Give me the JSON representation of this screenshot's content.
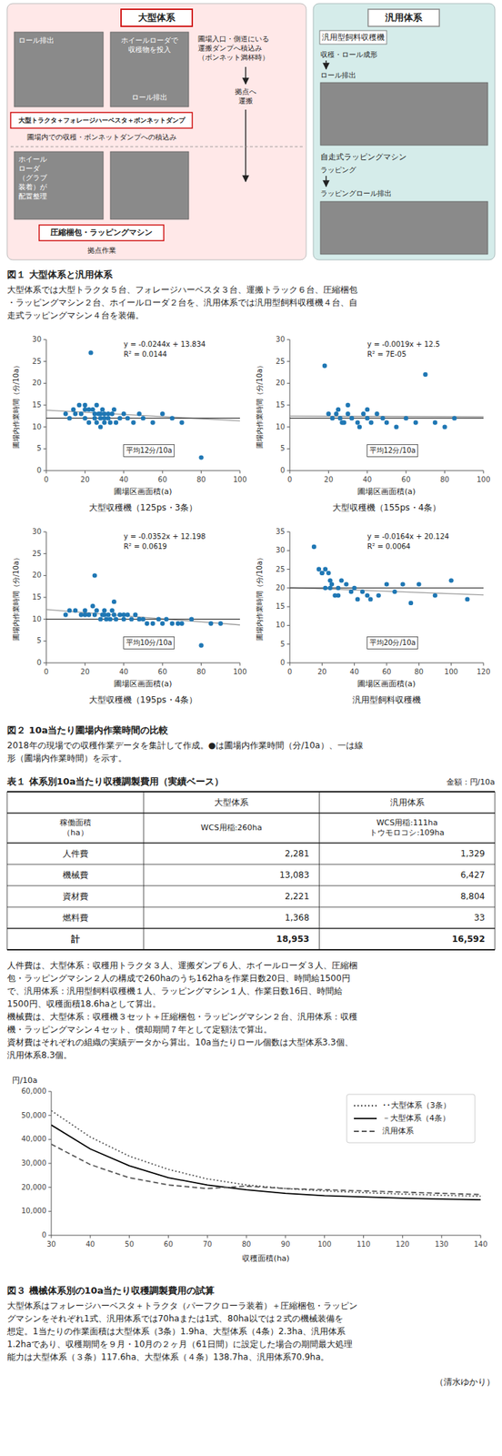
{
  "chart_data": [
    {
      "type": "diagram",
      "title": "図１ 大型体系と汎用体系",
      "subtitle": [
        "大型体系では大型トラクタ５台、フォレージハーベスタ３台、運搬トラック６台、圧縮梱包",
        "・ラッピングマシン２台、ホイールローダ２台を、汎用体系では汎用型飼料収穫機４台、自",
        "走式ラッピングマシン４台を装備。"
      ],
      "categories": [
        "大型体系",
        "汎用体系"
      ],
      "colors": [
        "#FFE8E8",
        "#D5ECEA"
      ],
      "annotations": [
        "大型トラクタ＋フォレージハーベスタ＋ボンネットダンプ",
        "圃場内での収穫・ボンネットダンプへの積込み",
        "圧縮梱包・ラッピングマシン",
        "拠点作業",
        "圃場入口・側道にいる\n運搬ダンプへ積込み\n（ボンネット満杯時）",
        "拠点へ\n運搬",
        "ロール排出",
        "ロール排出",
        "ホイール\nローダ\n（グラブ\n装着）が\n配置整理",
        "ホイールローダで\n収穫物を投入",
        "汎用型飼料収穫機",
        "収穫・ロール成形",
        "ロール排出",
        "自走式ラッピングマシン",
        "ラッピング",
        "ラッピングロール排出"
      ]
    },
    {
      "type": "scatter",
      "title": "大型収穫機（125ps・3条）",
      "x_label": "圃場区画面積(a)",
      "y_label": "圃場内作業時間（分/10a）",
      "annotations": [
        "y = -0.0244x + 13.834",
        "R² = 0.0144",
        "平均12分/10a"
      ],
      "slope": -0.0244,
      "intercept": 13.834,
      "average": 12,
      "xlim": [
        0,
        100
      ],
      "ylim": [
        0,
        30
      ],
      "xticks": [
        0,
        20,
        40,
        60,
        80,
        100
      ],
      "yticks": [
        0,
        5,
        10,
        15,
        20,
        25,
        30
      ],
      "grid": false,
      "x": [
        10,
        12,
        14,
        15,
        17,
        18,
        20,
        20,
        20,
        22,
        22,
        23,
        24,
        25,
        25,
        26,
        26,
        27,
        28,
        28,
        28,
        29,
        30,
        30,
        30,
        32,
        32,
        33,
        34,
        35,
        36,
        38,
        40,
        42,
        45,
        48,
        50,
        55,
        60,
        65,
        70,
        80
      ],
      "values": [
        13,
        12,
        14,
        13,
        15,
        13,
        15,
        12,
        14,
        14,
        11,
        27,
        14,
        13,
        12,
        11,
        15,
        13,
        12,
        10,
        13,
        14,
        13,
        11,
        12,
        13,
        12,
        11,
        13,
        14,
        11,
        12,
        13,
        12,
        11,
        13,
        12,
        11,
        13,
        12,
        11,
        3
      ]
    },
    {
      "type": "scatter",
      "title": "大型収穫機（155ps・4条）",
      "x_label": "圃場区画面積(a)",
      "y_label": "圃場内作業時間（分/10a）",
      "annotations": [
        "y = -0.0019x + 12.5",
        "R² = 7E-05",
        "平均12分/10a"
      ],
      "slope": -0.0019,
      "intercept": 12.5,
      "average": 12,
      "xlim": [
        0,
        100
      ],
      "ylim": [
        0,
        30
      ],
      "xticks": [
        0,
        20,
        40,
        60,
        80,
        100
      ],
      "yticks": [
        0,
        5,
        10,
        15,
        20,
        25,
        30
      ],
      "grid": false,
      "x": [
        18,
        20,
        22,
        24,
        25,
        26,
        27,
        28,
        30,
        30,
        32,
        35,
        36,
        38,
        40,
        40,
        42,
        45,
        48,
        50,
        55,
        60,
        65,
        70,
        75,
        80,
        85
      ],
      "values": [
        24,
        13,
        12,
        13,
        14,
        12,
        11,
        11,
        13,
        15,
        12,
        11,
        10,
        13,
        12,
        14,
        11,
        13,
        12,
        11,
        10,
        12,
        11,
        22,
        11,
        10,
        12
      ]
    },
    {
      "type": "scatter",
      "title": "大型収穫機（195ps・4条）",
      "x_label": "圃場区画面積(a)",
      "y_label": "圃場内作業時間（分/10a）",
      "annotations": [
        "y = -0.0352x + 12.198",
        "R² = 0.0619",
        "平均10分/10a"
      ],
      "slope": -0.0352,
      "intercept": 12.198,
      "average": 10,
      "xlim": [
        0,
        100
      ],
      "ylim": [
        0,
        30
      ],
      "xticks": [
        0,
        20,
        40,
        60,
        80,
        100
      ],
      "yticks": [
        0,
        5,
        10,
        15,
        20,
        25,
        30
      ],
      "grid": false,
      "x": [
        10,
        12,
        15,
        18,
        20,
        20,
        22,
        24,
        25,
        25,
        26,
        28,
        29,
        30,
        30,
        31,
        32,
        33,
        34,
        35,
        35,
        36,
        38,
        40,
        40,
        42,
        44,
        46,
        48,
        50,
        52,
        55,
        58,
        60,
        62,
        65,
        68,
        70,
        75,
        80,
        85,
        90
      ],
      "values": [
        11,
        12,
        12,
        11,
        12,
        11,
        11,
        13,
        11,
        20,
        12,
        10,
        11,
        12,
        11,
        10,
        11,
        10,
        12,
        11,
        14,
        10,
        11,
        10,
        11,
        11,
        10,
        11,
        10,
        10,
        9,
        9,
        10,
        9,
        10,
        9,
        9,
        9,
        10,
        4,
        9,
        9
      ]
    },
    {
      "type": "scatter",
      "title": "汎用型飼料収穫機",
      "x_label": "圃場区画面積(a)",
      "y_label": "圃場内作業時間（分/10a）",
      "annotations": [
        "y = -0.0164x + 20.124",
        "R² = 0.0064",
        "平均20分/10a"
      ],
      "slope": -0.0164,
      "intercept": 20.124,
      "average": 20,
      "xlim": [
        0,
        120
      ],
      "ylim": [
        0,
        35
      ],
      "xticks": [
        0,
        20,
        40,
        60,
        80,
        100,
        120
      ],
      "yticks": [
        0,
        5,
        10,
        15,
        20,
        25,
        30,
        35
      ],
      "grid": false,
      "x": [
        15,
        18,
        20,
        20,
        22,
        22,
        24,
        25,
        25,
        26,
        28,
        30,
        30,
        32,
        35,
        38,
        40,
        42,
        45,
        48,
        50,
        55,
        60,
        65,
        70,
        75,
        80,
        90,
        100,
        110
      ],
      "values": [
        31,
        25,
        24,
        24,
        25,
        20,
        24,
        20,
        22,
        21,
        18,
        20,
        18,
        22,
        21,
        19,
        20,
        17,
        19,
        18,
        17,
        18,
        21,
        19,
        21,
        16,
        21,
        18,
        22,
        17
      ]
    },
    {
      "type": "caption",
      "title": "図２ 10a当たり圃場内作業時間の比較",
      "subtitle": [
        "2018年の現場での収穫作業データを集計して作成。●は圃場内作業時間（分/10a）、一は線",
        "形（圃場内作業時間）を示す。"
      ]
    },
    {
      "type": "table",
      "title": "表１ 体系別10a当たり収穫調製費用（実績ベース）",
      "annotations": [
        "金額：円/10a",
        "稼働面積\n（ha）",
        "WCS用稲:260ha",
        "WCS用稲:111ha\nトウモロコシ:109ha"
      ],
      "categories": [
        "人件費",
        "機械費",
        "資材費",
        "燃料費",
        "計"
      ],
      "series": [
        {
          "name": "大型体系",
          "values": [
            2281,
            13083,
            2221,
            1368,
            18953
          ],
          "value_labels": [
            "2,281",
            "13,083",
            "2,221",
            "1,368",
            "18,953"
          ]
        },
        {
          "name": "汎用体系",
          "values": [
            1329,
            6427,
            8804,
            33,
            16592
          ],
          "value_labels": [
            "1,329",
            "6,427",
            "8,804",
            "33",
            "16,592"
          ]
        }
      ],
      "subtitle": [
        "人件費は、大型体系：収穫用トラクタ３人、運搬ダンプ６人、ホイールローダ３人、圧縮梱",
        "包・ラッピングマシン２人の構成で260haのうち162haを作業日数20日、時間給1500円",
        "で、汎用体系：汎用型飼料収穫機１人、ラッピングマシン１人、作業日数16日、時間給",
        "1500円、収穫面積18.6haとして算出。",
        "機械費は、大型体系：収穫機３セット＋圧縮梱包・ラッピングマシン２台、汎用体系：収穫",
        "機・ラッピングマシン４セット、償却期間７年として定額法で算出。",
        "資材費はそれぞれの組織の実績データから算出。10a当たりロール個数は大型体系3.3個、",
        "汎用体系8.3個。"
      ]
    },
    {
      "type": "line",
      "title": "図３ 機械体系別の10a当たり収穫調製費用の試算",
      "subtitle": [
        "大型体系はフォレージハーベスタ＋トラクタ（パーフクローラ装着）＋圧縮梱包・ラッピン",
        "グマシンをそれぞれ1式、汎用体系では70haまたは1式、80ha以では２式の機械装備を",
        "想定。1当たりの作業面積は大型体系（3条）1.9ha、大型体系（4条）2.3ha、汎用体系",
        "1.2haであり、収穫期間を９月・10月の２ヶ月（61日間）に設定した場合の期間最大処理",
        "能力は大型体系（３条）117.6ha、大型体系（４条）138.7ha、汎用体系70.9ha。"
      ],
      "annotations": [
        "（清水ゆかり）"
      ],
      "x_label": "収穫面積(ha)",
      "y_label": "円/10a",
      "x": [
        30,
        40,
        50,
        60,
        70,
        80,
        90,
        100,
        110,
        120,
        130,
        140
      ],
      "series": [
        {
          "name": "･･大型体系（3条）",
          "color": "#555555",
          "line_style": "dotted",
          "values": [
            52000,
            41000,
            33000,
            27500,
            23500,
            21000,
            19500,
            18500,
            17800,
            17200,
            16700,
            16300
          ]
        },
        {
          "name": "－大型体系（4条）",
          "color": "#000000",
          "line_style": "solid",
          "values": [
            46000,
            36000,
            29000,
            24000,
            21000,
            19000,
            17500,
            16500,
            16000,
            15500,
            15100,
            14800
          ]
        },
        {
          "name": "汎用体系",
          "color": "#555555",
          "line_style": "dashed",
          "values": [
            38000,
            29500,
            24000,
            21000,
            19500,
            20500,
            19500,
            19000,
            18500,
            18000,
            17500,
            17000
          ]
        }
      ],
      "xlim": [
        30,
        140
      ],
      "ylim": [
        0,
        60000
      ],
      "xticks": [
        30,
        40,
        50,
        60,
        70,
        80,
        90,
        100,
        110,
        120,
        130,
        140
      ],
      "yticks": [
        0,
        {
          "value": 10000,
          "label": "10,000"
        },
        {
          "value": 20000,
          "label": "20,000"
        },
        {
          "value": 30000,
          "label": "30,000"
        },
        {
          "value": 40000,
          "label": "40,000"
        },
        {
          "value": 50000,
          "label": "50,000"
        },
        {
          "value": 60000,
          "label": "60,000"
        }
      ],
      "legend": "upper right",
      "grid": false
    }
  ]
}
